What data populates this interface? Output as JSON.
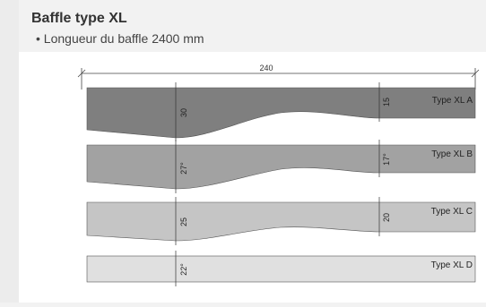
{
  "header": {
    "title": "Baffle type XL",
    "bullet": "•",
    "spec": "Longueur du baffle 2400 mm"
  },
  "diagram": {
    "total_length_label": "240",
    "baffles": [
      {
        "label": "Type XL A",
        "left_height": "30",
        "right_height": "15"
      },
      {
        "label": "Type XL B",
        "left_height": "27°",
        "right_height": "17°"
      },
      {
        "label": "Type XL C",
        "left_height": "25",
        "right_height": "20"
      },
      {
        "label": "Type XL D",
        "left_height": "22°"
      }
    ],
    "colors": {
      "xl_a": "#7f7f7f",
      "xl_b": "#a2a2a2",
      "xl_c": "#c5c5c5",
      "xl_d": "#e0e0e0",
      "outline": "#555555"
    }
  }
}
